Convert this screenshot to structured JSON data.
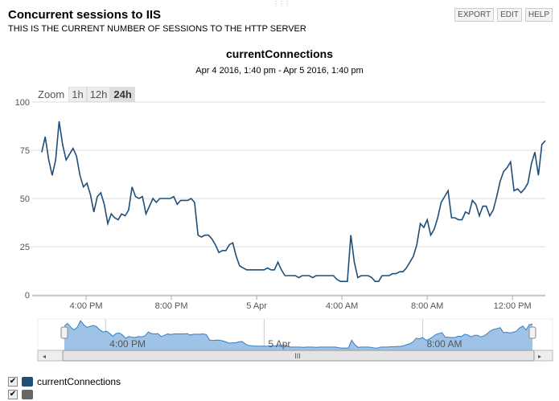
{
  "header": {
    "title": "Concurrent sessions to IIS",
    "subtitle": "THIS IS THE CURRENT NUMBER OF SESSIONS TO THE HTTP SERVER",
    "buttons": [
      "EXPORT",
      "EDIT",
      "HELP"
    ]
  },
  "zoom": {
    "label": "Zoom",
    "options": [
      "1h",
      "12h",
      "24h"
    ],
    "selected": "24h"
  },
  "legend": [
    {
      "label": "currentConnections",
      "color": "#1f4e79",
      "checked": true
    },
    {
      "label": "",
      "color": "#666666",
      "checked": true
    }
  ],
  "navigator": {
    "labels": [
      "4:00 PM",
      "5 Apr",
      "8:00 AM"
    ]
  },
  "chart_data": {
    "type": "line",
    "title": "currentConnections",
    "subtitle": "Apr 4 2016, 1:40 pm - Apr 5 2016, 1:40 pm",
    "series": [
      {
        "name": "currentConnections",
        "color": "#1f4e79",
        "x_start_hour": 13.92,
        "x_end_hour": 37.54,
        "values": [
          74,
          82,
          70,
          62,
          70,
          90,
          78,
          70,
          73,
          76,
          72,
          62,
          56,
          58,
          52,
          43,
          51,
          53,
          47,
          37,
          42,
          40,
          39,
          42,
          41,
          44,
          56,
          51,
          50,
          51,
          42,
          46,
          50,
          48,
          50,
          50,
          50,
          50,
          51,
          47,
          49,
          49,
          49,
          50,
          48,
          31,
          30,
          31,
          31,
          29,
          26,
          22,
          23,
          23,
          26,
          27,
          20,
          15,
          14,
          13,
          13,
          13,
          13,
          13,
          13,
          14,
          13,
          13,
          17,
          13,
          10,
          10,
          10,
          10,
          9,
          10,
          10,
          10,
          9,
          10,
          10,
          10,
          10,
          10,
          10,
          8,
          7,
          7,
          7,
          31,
          17,
          9,
          10,
          10,
          10,
          9,
          7,
          7,
          10,
          10,
          10,
          11,
          11,
          12,
          12,
          14,
          17,
          20,
          26,
          37,
          35,
          39,
          31,
          34,
          40,
          48,
          51,
          54,
          40,
          40,
          39,
          39,
          43,
          42,
          49,
          47,
          41,
          46,
          46,
          41,
          44,
          51,
          59,
          64,
          66,
          69,
          54,
          55,
          53,
          55,
          58,
          68,
          74,
          62,
          78,
          80
        ]
      }
    ],
    "xlim_hours": [
      13.47,
      37.54
    ],
    "ylim": [
      0,
      100
    ],
    "yticks": [
      0,
      25,
      50,
      75,
      100
    ],
    "xticks": [
      {
        "hour": 16,
        "label": "4:00 PM"
      },
      {
        "hour": 20,
        "label": "8:00 PM"
      },
      {
        "hour": 24,
        "label": "5 Apr"
      },
      {
        "hour": 28,
        "label": "4:00 AM"
      },
      {
        "hour": 32,
        "label": "8:00 AM"
      },
      {
        "hour": 36,
        "label": "12:00 PM"
      }
    ],
    "grid": true
  }
}
